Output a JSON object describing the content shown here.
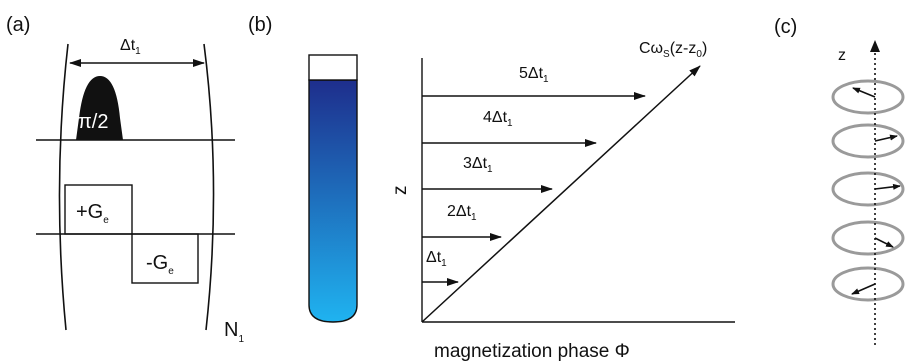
{
  "panels": {
    "a": {
      "tag": "(a)",
      "delta_t": "Δt",
      "delta_t_sub": "1",
      "pulse_label": "π/2",
      "grad_pos": "+G",
      "grad_pos_sub": "e",
      "grad_neg": "-G",
      "grad_neg_sub": "e",
      "loop": "N",
      "loop_sub": "1"
    },
    "b": {
      "tag": "(b)",
      "z_axis": "z",
      "x_axis": "magnetization phase Φ",
      "line_label": "Cω",
      "line_label_sub": "S",
      "line_label_tail": "(z-z",
      "line_label_sub2": "0",
      "line_label_end": ")",
      "steps": [
        {
          "mult": "5Δt",
          "sub": "1"
        },
        {
          "mult": "4Δt",
          "sub": "1"
        },
        {
          "mult": "3Δt",
          "sub": "1"
        },
        {
          "mult": "2Δt",
          "sub": "1"
        },
        {
          "mult": "Δt",
          "sub": "1"
        }
      ]
    },
    "c": {
      "tag": "(c)",
      "z_axis": "z"
    }
  },
  "colors": {
    "tube_top": "#1e2e8c",
    "tube_bottom": "#1fb3f0",
    "ellipse": "#9a9a9a"
  }
}
